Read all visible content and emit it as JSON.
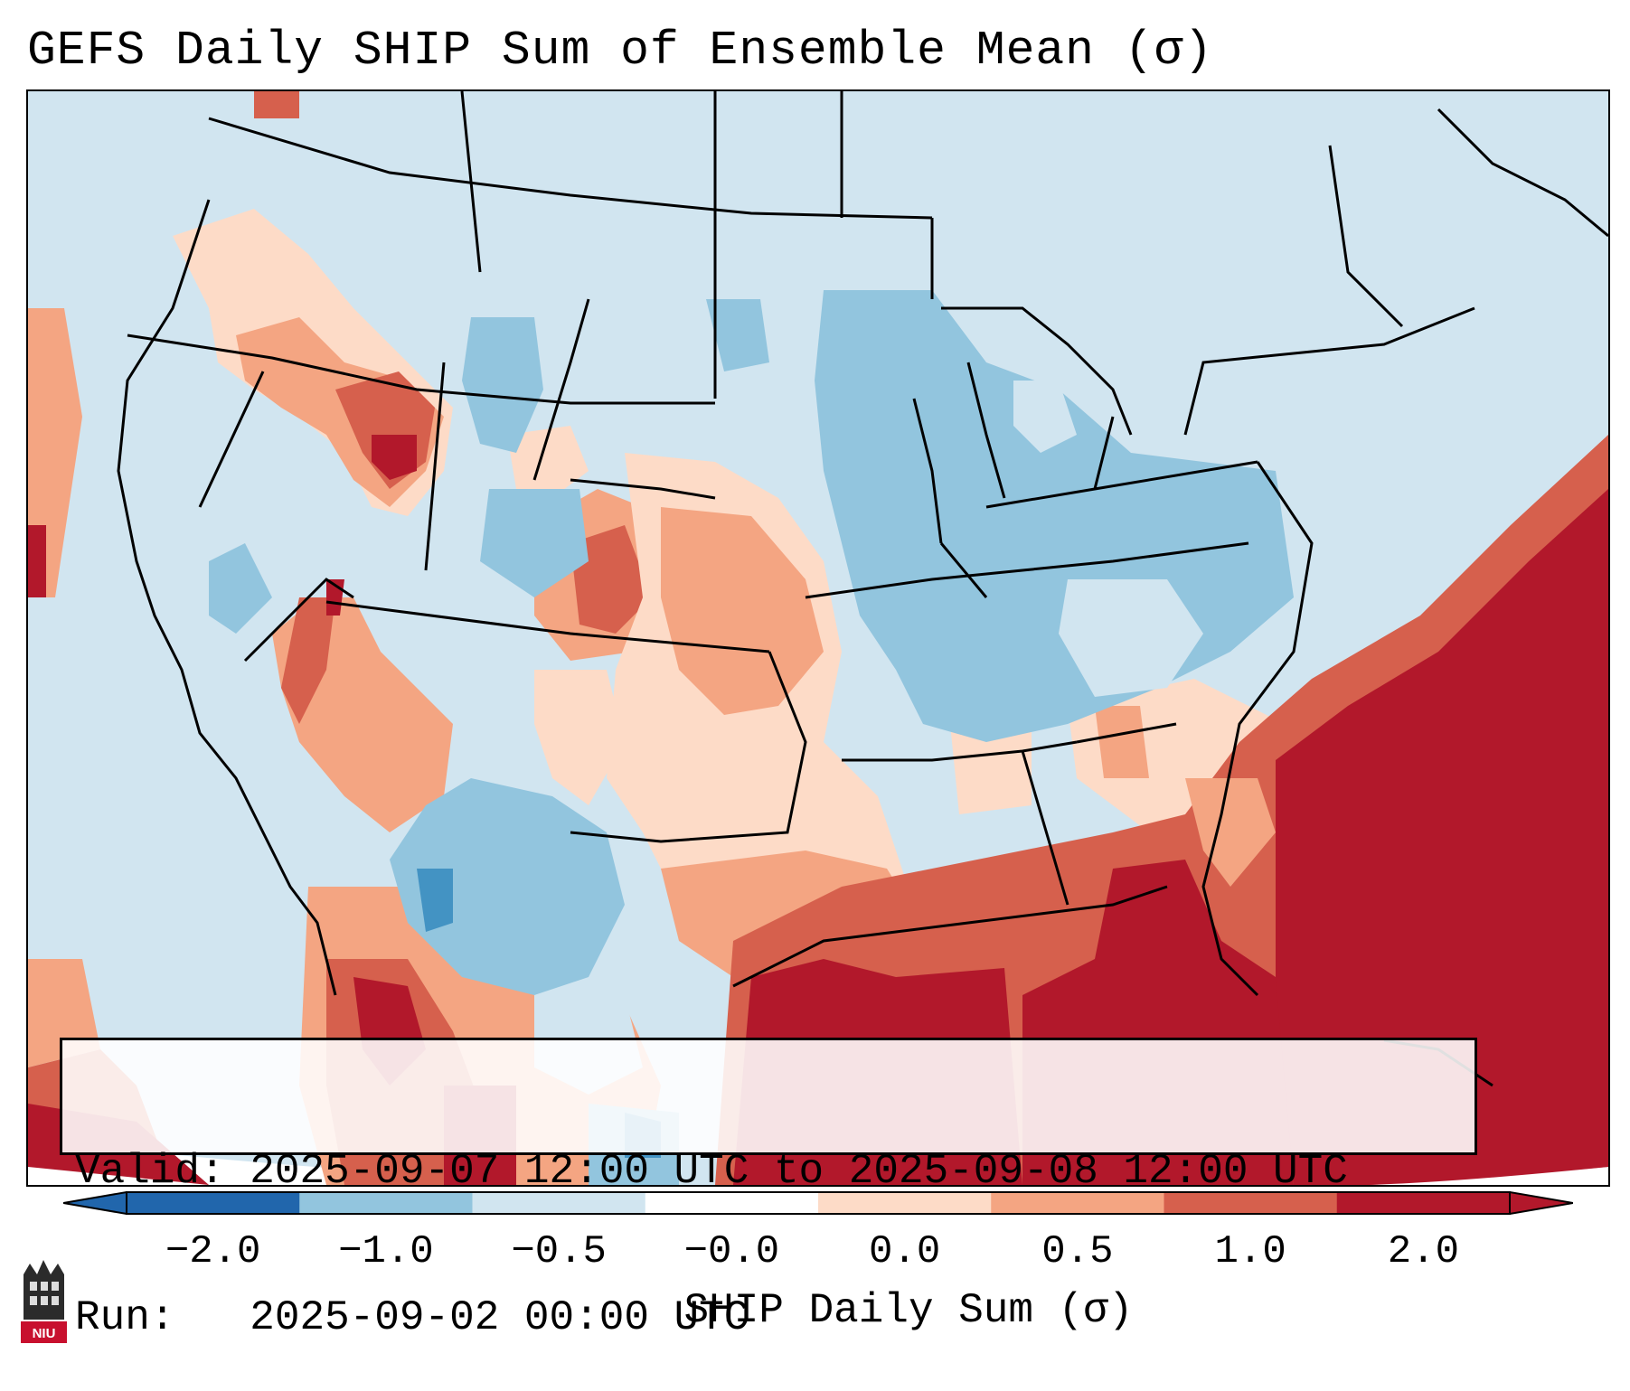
{
  "title": "GEFS Daily SHIP Sum of Ensemble Mean (σ)",
  "info": {
    "valid_label": "Valid:",
    "valid_value": "2025-09-07 12:00 UTC to 2025-09-08 12:00 UTC",
    "run_label": "Run:",
    "run_value": "2025-09-02 00:00 UTC"
  },
  "colorbar": {
    "label": "SHIP Daily Sum (σ)",
    "ticks": [
      "−2.0",
      "−1.0",
      "−0.5",
      "−0.0",
      "0.0",
      "0.5",
      "1.0",
      "2.0"
    ],
    "colors": [
      "#2166ac",
      "#92c5de",
      "#d1e5f0",
      "#ffffff",
      "#fddbc7",
      "#f4a582",
      "#d6604d",
      "#b2182b"
    ]
  },
  "legend_colors": {
    "strong_neg": "#4393c3",
    "neg": "#92c5de",
    "weak_neg": "#d1e5f0",
    "weak_pos": "#fddbc7",
    "pos": "#f4a582",
    "strong_pos": "#d6604d",
    "extreme_pos": "#b2182b"
  },
  "logo": {
    "text": "NIU"
  }
}
